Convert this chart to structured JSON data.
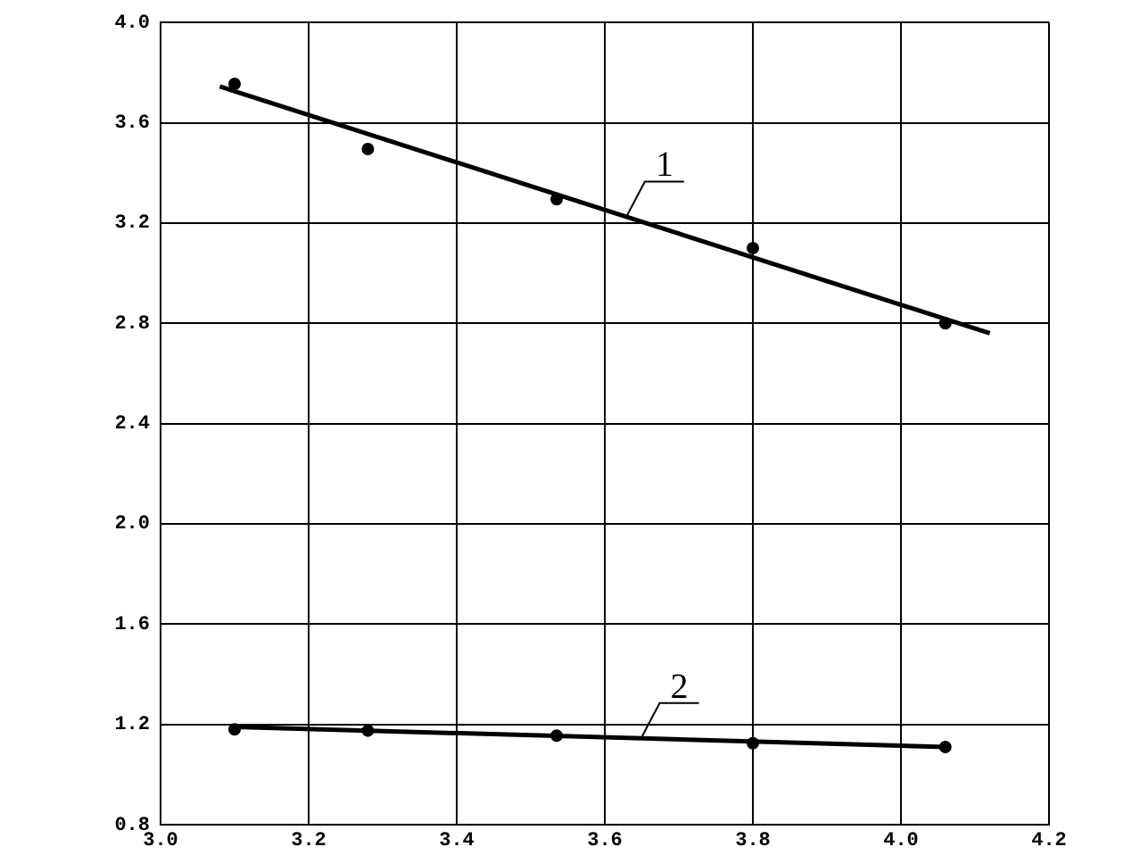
{
  "chart_data": {
    "type": "scatter",
    "series": [
      {
        "type": "scatter",
        "color": "#000000",
        "x": [
          3.1,
          3.28,
          3.535,
          3.8,
          4.06
        ],
        "values": [
          3.755,
          3.495,
          3.295,
          3.1,
          2.8
        ]
      },
      {
        "type": "line",
        "color": "#000000",
        "x": [
          3.08,
          4.12
        ],
        "values": [
          3.745,
          2.76
        ],
        "marker": "none"
      },
      {
        "type": "scatter",
        "color": "#000000",
        "x": [
          3.1,
          3.28,
          3.535,
          3.8,
          4.06
        ],
        "values": [
          1.18,
          1.175,
          1.155,
          1.125,
          1.11
        ]
      },
      {
        "type": "line",
        "color": "#000000",
        "x": [
          3.1,
          4.06
        ],
        "values": [
          1.19,
          1.11
        ],
        "marker": "none"
      }
    ],
    "xlim": [
      3.0,
      4.2
    ],
    "xticks": [
      {
        "value": 3.0,
        "label": "3.0"
      },
      {
        "value": 3.2,
        "label": "3.2"
      },
      {
        "value": 3.4,
        "label": "3.4"
      },
      {
        "value": 3.6,
        "label": "3.6"
      },
      {
        "value": 3.8,
        "label": "3.8"
      },
      {
        "value": 4.0,
        "label": "4.0"
      },
      {
        "value": 4.2,
        "label": "4.2"
      }
    ],
    "ylim": [
      0.8,
      4.0
    ],
    "yticks": [
      {
        "value": 0.8,
        "label": "0.8"
      },
      {
        "value": 1.2,
        "label": "1.2"
      },
      {
        "value": 1.6,
        "label": "1.6"
      },
      {
        "value": 2.0,
        "label": "2.0"
      },
      {
        "value": 2.4,
        "label": "2.4"
      },
      {
        "value": 2.8,
        "label": "2.8"
      },
      {
        "value": 3.2,
        "label": "3.2"
      },
      {
        "value": 3.6,
        "label": "3.6"
      },
      {
        "value": 4.0,
        "label": "4.0"
      }
    ],
    "annotations": [
      {
        "text": "1",
        "x": 3.63,
        "y": 3.23
      },
      {
        "text": "2",
        "x": 3.65,
        "y": 1.15
      }
    ],
    "grid": true,
    "legend": false,
    "marker": "circle",
    "line_style": "solid"
  }
}
